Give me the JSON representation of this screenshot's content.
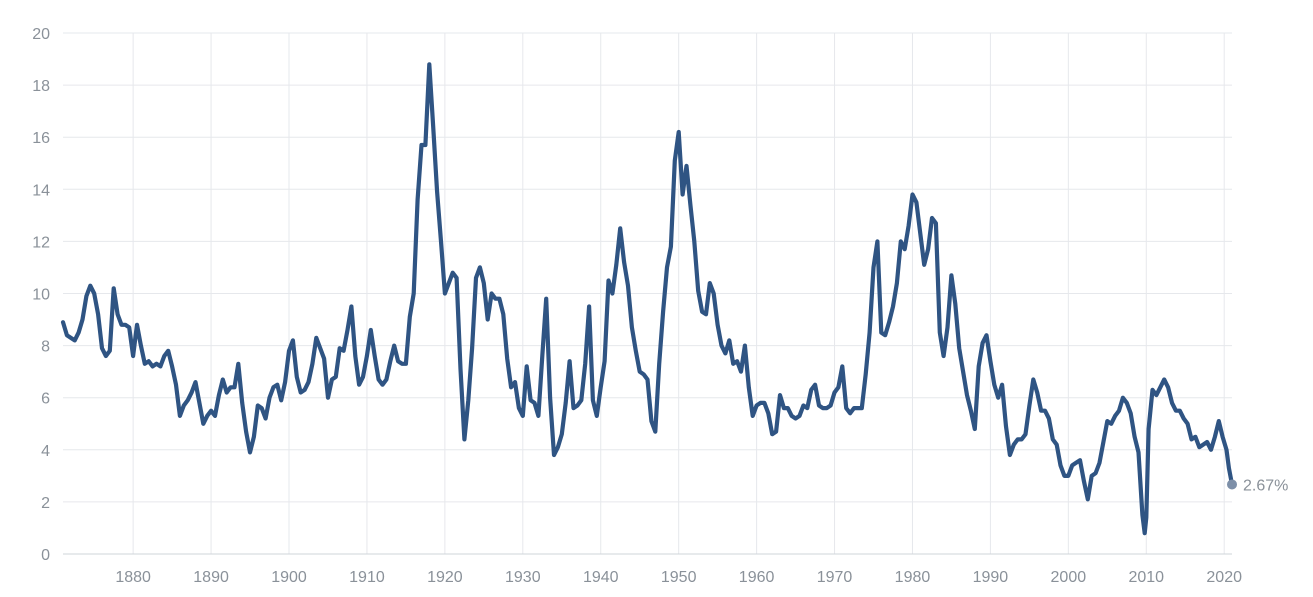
{
  "chart_data": {
    "type": "line",
    "title": "",
    "xlabel": "",
    "ylabel": "",
    "xlim": [
      1871,
      2021
    ],
    "ylim": [
      0,
      20
    ],
    "x_ticks": [
      1880,
      1890,
      1900,
      1910,
      1920,
      1930,
      1940,
      1950,
      1960,
      1970,
      1980,
      1990,
      2000,
      2010,
      2020
    ],
    "y_ticks": [
      0,
      2,
      4,
      6,
      8,
      10,
      12,
      14,
      16,
      18,
      20
    ],
    "grid": true,
    "legend": "none",
    "colors": {
      "line": "#2f5483",
      "end_dot": "#7d8fa8",
      "grid": "#e6e8ec",
      "tick_text": "#8a9199"
    },
    "end_label": "2.67%",
    "series": [
      {
        "points": [
          [
            1871.0,
            8.9
          ],
          [
            1871.5,
            8.4
          ],
          [
            1872.5,
            8.2
          ],
          [
            1873.0,
            8.5
          ],
          [
            1873.5,
            9.0
          ],
          [
            1874.0,
            9.9
          ],
          [
            1874.5,
            10.3
          ],
          [
            1875.0,
            10.0
          ],
          [
            1875.5,
            9.2
          ],
          [
            1876.0,
            7.9
          ],
          [
            1876.5,
            7.6
          ],
          [
            1877.0,
            7.8
          ],
          [
            1877.5,
            10.2
          ],
          [
            1878.0,
            9.2
          ],
          [
            1878.5,
            8.8
          ],
          [
            1879.0,
            8.8
          ],
          [
            1879.5,
            8.7
          ],
          [
            1880.0,
            7.6
          ],
          [
            1880.5,
            8.8
          ],
          [
            1881.0,
            8.0
          ],
          [
            1881.5,
            7.3
          ],
          [
            1882.0,
            7.4
          ],
          [
            1882.5,
            7.2
          ],
          [
            1883.0,
            7.3
          ],
          [
            1883.5,
            7.2
          ],
          [
            1884.0,
            7.6
          ],
          [
            1884.5,
            7.8
          ],
          [
            1885.0,
            7.2
          ],
          [
            1885.5,
            6.5
          ],
          [
            1886.0,
            5.3
          ],
          [
            1886.5,
            5.7
          ],
          [
            1887.0,
            5.9
          ],
          [
            1887.5,
            6.2
          ],
          [
            1888.0,
            6.6
          ],
          [
            1888.5,
            5.8
          ],
          [
            1889.0,
            5.0
          ],
          [
            1889.5,
            5.3
          ],
          [
            1890.0,
            5.5
          ],
          [
            1890.5,
            5.3
          ],
          [
            1891.0,
            6.1
          ],
          [
            1891.5,
            6.7
          ],
          [
            1892.0,
            6.2
          ],
          [
            1892.5,
            6.4
          ],
          [
            1893.0,
            6.4
          ],
          [
            1893.5,
            7.3
          ],
          [
            1894.0,
            5.8
          ],
          [
            1894.5,
            4.7
          ],
          [
            1895.0,
            3.9
          ],
          [
            1895.5,
            4.5
          ],
          [
            1896.0,
            5.7
          ],
          [
            1896.5,
            5.6
          ],
          [
            1897.0,
            5.2
          ],
          [
            1897.5,
            6.0
          ],
          [
            1898.0,
            6.4
          ],
          [
            1898.5,
            6.5
          ],
          [
            1899.0,
            5.9
          ],
          [
            1899.5,
            6.6
          ],
          [
            1900.0,
            7.8
          ],
          [
            1900.5,
            8.2
          ],
          [
            1901.0,
            6.8
          ],
          [
            1901.5,
            6.2
          ],
          [
            1902.0,
            6.3
          ],
          [
            1902.5,
            6.6
          ],
          [
            1903.0,
            7.3
          ],
          [
            1903.5,
            8.3
          ],
          [
            1904.0,
            7.9
          ],
          [
            1904.5,
            7.5
          ],
          [
            1905.0,
            6.0
          ],
          [
            1905.5,
            6.7
          ],
          [
            1906.0,
            6.8
          ],
          [
            1906.5,
            7.9
          ],
          [
            1907.0,
            7.8
          ],
          [
            1907.5,
            8.6
          ],
          [
            1908.0,
            9.5
          ],
          [
            1908.5,
            7.6
          ],
          [
            1909.0,
            6.5
          ],
          [
            1909.5,
            6.8
          ],
          [
            1910.0,
            7.6
          ],
          [
            1910.5,
            8.6
          ],
          [
            1911.0,
            7.6
          ],
          [
            1911.5,
            6.7
          ],
          [
            1912.0,
            6.5
          ],
          [
            1912.5,
            6.7
          ],
          [
            1913.0,
            7.4
          ],
          [
            1913.5,
            8.0
          ],
          [
            1914.0,
            7.4
          ],
          [
            1914.5,
            7.3
          ],
          [
            1915.0,
            7.3
          ],
          [
            1915.5,
            9.1
          ],
          [
            1916.0,
            10.0
          ],
          [
            1916.5,
            13.6
          ],
          [
            1917.0,
            15.7
          ],
          [
            1917.5,
            15.7
          ],
          [
            1918.0,
            18.8
          ],
          [
            1918.5,
            16.4
          ],
          [
            1919.0,
            13.9
          ],
          [
            1919.5,
            12.0
          ],
          [
            1920.0,
            10.0
          ],
          [
            1920.5,
            10.4
          ],
          [
            1921.0,
            10.8
          ],
          [
            1921.5,
            10.6
          ],
          [
            1922.0,
            7.1
          ],
          [
            1922.5,
            4.4
          ],
          [
            1923.0,
            5.9
          ],
          [
            1923.5,
            7.9
          ],
          [
            1924.0,
            10.6
          ],
          [
            1924.5,
            11.0
          ],
          [
            1925.0,
            10.4
          ],
          [
            1925.5,
            9.0
          ],
          [
            1926.0,
            10.0
          ],
          [
            1926.5,
            9.8
          ],
          [
            1927.0,
            9.8
          ],
          [
            1927.5,
            9.2
          ],
          [
            1928.0,
            7.5
          ],
          [
            1928.5,
            6.4
          ],
          [
            1929.0,
            6.6
          ],
          [
            1929.5,
            5.6
          ],
          [
            1930.0,
            5.3
          ],
          [
            1930.5,
            7.2
          ],
          [
            1931.0,
            5.9
          ],
          [
            1931.5,
            5.8
          ],
          [
            1932.0,
            5.3
          ],
          [
            1932.5,
            7.6
          ],
          [
            1933.0,
            9.8
          ],
          [
            1933.5,
            6.0
          ],
          [
            1934.0,
            3.8
          ],
          [
            1934.5,
            4.1
          ],
          [
            1935.0,
            4.6
          ],
          [
            1935.5,
            5.8
          ],
          [
            1936.0,
            7.4
          ],
          [
            1936.5,
            5.6
          ],
          [
            1937.0,
            5.7
          ],
          [
            1937.5,
            5.9
          ],
          [
            1938.0,
            7.3
          ],
          [
            1938.5,
            9.5
          ],
          [
            1939.0,
            5.9
          ],
          [
            1939.5,
            5.3
          ],
          [
            1940.0,
            6.4
          ],
          [
            1940.5,
            7.4
          ],
          [
            1941.0,
            10.5
          ],
          [
            1941.5,
            10.0
          ],
          [
            1942.0,
            11.1
          ],
          [
            1942.5,
            12.5
          ],
          [
            1943.0,
            11.2
          ],
          [
            1943.5,
            10.3
          ],
          [
            1944.0,
            8.7
          ],
          [
            1944.5,
            7.8
          ],
          [
            1945.0,
            7.0
          ],
          [
            1945.5,
            6.9
          ],
          [
            1946.0,
            6.7
          ],
          [
            1946.5,
            5.1
          ],
          [
            1947.0,
            4.7
          ],
          [
            1947.5,
            7.3
          ],
          [
            1948.0,
            9.3
          ],
          [
            1948.5,
            11.0
          ],
          [
            1949.0,
            11.8
          ],
          [
            1949.5,
            15.1
          ],
          [
            1950.0,
            16.2
          ],
          [
            1950.5,
            13.8
          ],
          [
            1951.0,
            14.9
          ],
          [
            1951.5,
            13.4
          ],
          [
            1952.0,
            12.0
          ],
          [
            1952.5,
            10.1
          ],
          [
            1953.0,
            9.3
          ],
          [
            1953.5,
            9.2
          ],
          [
            1954.0,
            10.4
          ],
          [
            1954.5,
            10.0
          ],
          [
            1955.0,
            8.8
          ],
          [
            1955.5,
            8.0
          ],
          [
            1956.0,
            7.7
          ],
          [
            1956.5,
            8.2
          ],
          [
            1957.0,
            7.3
          ],
          [
            1957.5,
            7.4
          ],
          [
            1958.0,
            7.0
          ],
          [
            1958.5,
            8.0
          ],
          [
            1959.0,
            6.4
          ],
          [
            1959.5,
            5.3
          ],
          [
            1960.0,
            5.7
          ],
          [
            1960.5,
            5.8
          ],
          [
            1961.0,
            5.8
          ],
          [
            1961.5,
            5.4
          ],
          [
            1962.0,
            4.6
          ],
          [
            1962.5,
            4.7
          ],
          [
            1963.0,
            6.1
          ],
          [
            1963.5,
            5.6
          ],
          [
            1964.0,
            5.6
          ],
          [
            1964.5,
            5.3
          ],
          [
            1965.0,
            5.2
          ],
          [
            1965.5,
            5.3
          ],
          [
            1966.0,
            5.7
          ],
          [
            1966.5,
            5.6
          ],
          [
            1967.0,
            6.3
          ],
          [
            1967.5,
            6.5
          ],
          [
            1968.0,
            5.7
          ],
          [
            1968.5,
            5.6
          ],
          [
            1969.0,
            5.6
          ],
          [
            1969.5,
            5.7
          ],
          [
            1970.0,
            6.2
          ],
          [
            1970.5,
            6.4
          ],
          [
            1971.0,
            7.2
          ],
          [
            1971.5,
            5.6
          ],
          [
            1972.0,
            5.4
          ],
          [
            1972.5,
            5.6
          ],
          [
            1973.0,
            5.6
          ],
          [
            1973.5,
            5.6
          ],
          [
            1974.0,
            6.9
          ],
          [
            1974.5,
            8.5
          ],
          [
            1975.0,
            11.0
          ],
          [
            1975.5,
            12.0
          ],
          [
            1976.0,
            8.5
          ],
          [
            1976.5,
            8.4
          ],
          [
            1977.0,
            8.9
          ],
          [
            1977.5,
            9.5
          ],
          [
            1978.0,
            10.4
          ],
          [
            1978.5,
            12.0
          ],
          [
            1979.0,
            11.7
          ],
          [
            1979.5,
            12.6
          ],
          [
            1980.0,
            13.8
          ],
          [
            1980.5,
            13.5
          ],
          [
            1981.0,
            12.3
          ],
          [
            1981.5,
            11.1
          ],
          [
            1982.0,
            11.7
          ],
          [
            1982.5,
            12.9
          ],
          [
            1983.0,
            12.7
          ],
          [
            1983.5,
            8.5
          ],
          [
            1984.0,
            7.6
          ],
          [
            1984.5,
            8.7
          ],
          [
            1985.0,
            10.7
          ],
          [
            1985.5,
            9.6
          ],
          [
            1986.0,
            7.9
          ],
          [
            1986.5,
            7.0
          ],
          [
            1987.0,
            6.1
          ],
          [
            1987.5,
            5.5
          ],
          [
            1988.0,
            4.8
          ],
          [
            1988.5,
            7.2
          ],
          [
            1989.0,
            8.1
          ],
          [
            1989.5,
            8.4
          ],
          [
            1990.0,
            7.4
          ],
          [
            1990.5,
            6.5
          ],
          [
            1991.0,
            6.0
          ],
          [
            1991.5,
            6.5
          ],
          [
            1992.0,
            4.9
          ],
          [
            1992.5,
            3.8
          ],
          [
            1993.0,
            4.2
          ],
          [
            1993.5,
            4.4
          ],
          [
            1994.0,
            4.4
          ],
          [
            1994.5,
            4.6
          ],
          [
            1995.0,
            5.7
          ],
          [
            1995.5,
            6.7
          ],
          [
            1996.0,
            6.2
          ],
          [
            1996.5,
            5.5
          ],
          [
            1997.0,
            5.5
          ],
          [
            1997.5,
            5.2
          ],
          [
            1998.0,
            4.4
          ],
          [
            1998.5,
            4.2
          ],
          [
            1999.0,
            3.4
          ],
          [
            1999.5,
            3.0
          ],
          [
            2000.0,
            3.0
          ],
          [
            2000.5,
            3.4
          ],
          [
            2001.0,
            3.5
          ],
          [
            2001.5,
            3.6
          ],
          [
            2002.0,
            2.8
          ],
          [
            2002.5,
            2.1
          ],
          [
            2003.0,
            3.0
          ],
          [
            2003.5,
            3.1
          ],
          [
            2004.0,
            3.5
          ],
          [
            2004.5,
            4.3
          ],
          [
            2005.0,
            5.1
          ],
          [
            2005.5,
            5.0
          ],
          [
            2006.0,
            5.3
          ],
          [
            2006.5,
            5.5
          ],
          [
            2007.0,
            6.0
          ],
          [
            2007.5,
            5.8
          ],
          [
            2008.0,
            5.4
          ],
          [
            2008.5,
            4.5
          ],
          [
            2009.0,
            3.9
          ],
          [
            2009.5,
            1.5
          ],
          [
            2009.8,
            0.8
          ],
          [
            2010.0,
            1.4
          ],
          [
            2010.3,
            4.8
          ],
          [
            2010.8,
            6.3
          ],
          [
            2011.3,
            6.1
          ],
          [
            2011.8,
            6.4
          ],
          [
            2012.3,
            6.7
          ],
          [
            2012.8,
            6.4
          ],
          [
            2013.3,
            5.8
          ],
          [
            2013.8,
            5.5
          ],
          [
            2014.3,
            5.5
          ],
          [
            2014.8,
            5.2
          ],
          [
            2015.3,
            5.0
          ],
          [
            2015.8,
            4.4
          ],
          [
            2016.3,
            4.5
          ],
          [
            2016.8,
            4.1
          ],
          [
            2017.3,
            4.2
          ],
          [
            2017.8,
            4.3
          ],
          [
            2018.3,
            4.0
          ],
          [
            2018.8,
            4.5
          ],
          [
            2019.3,
            5.1
          ],
          [
            2019.8,
            4.5
          ],
          [
            2020.3,
            4.0
          ],
          [
            2020.6,
            3.3
          ],
          [
            2021.0,
            2.67
          ]
        ]
      }
    ]
  }
}
